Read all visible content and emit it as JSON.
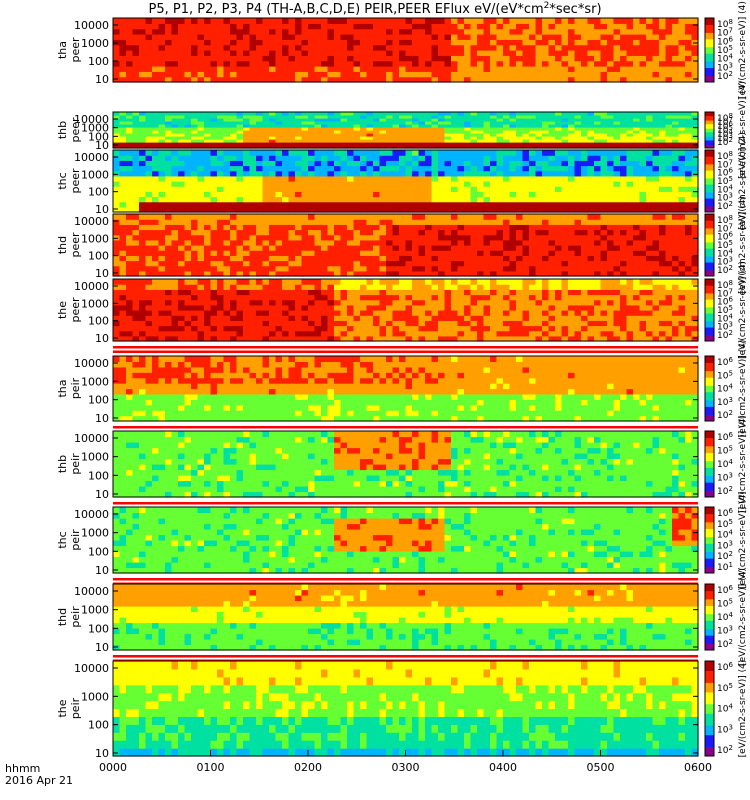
{
  "chart_data": {
    "type": "heatmap",
    "title": "P5, P1, P2, P3, P4 (TH-A,B,C,D,E) PEIR,PEER EFlux eV/(eV*cm^2*sec*sr)",
    "title_main": "P5, P1, P2, P3, P4 (TH-A,B,C,D,E) PEIR,PEER EFlux eV/(eV*cm",
    "title_sup": "2",
    "title_tail": "*sec*sr)",
    "x_axis": {
      "ticks": [
        "0000",
        "0100",
        "0200",
        "0300",
        "0400",
        "0500",
        "0600"
      ],
      "range_hours": [
        0,
        6
      ],
      "label_line1": "hhmm",
      "label_line2": "2016 Apr 21"
    },
    "panels": [
      {
        "probe": "tha",
        "line1": "tha",
        "line2": "peer",
        "species": "electron",
        "yticks": [
          "10",
          "100",
          "1000",
          "10000"
        ],
        "cb_ticks_exp": [
          "2",
          "3",
          "4",
          "5",
          "6",
          "7",
          "8"
        ],
        "cb_unit": "[eV/(cm2-s-sr-eV)] (4)",
        "separator_below": false
      },
      {
        "probe": "thb",
        "line1": "thb",
        "line2": "peer",
        "species": "electron",
        "yticks": [
          "10",
          "100",
          "1000",
          "10000"
        ],
        "cb_ticks_exp": [
          "2",
          "3",
          "4",
          "5",
          "6",
          "7",
          "8"
        ],
        "cb_unit": "[eV/(cm2-s-sr-eV)] (4)",
        "separator_below": false
      },
      {
        "probe": "thc",
        "line1": "thc",
        "line2": "peer",
        "species": "electron",
        "yticks": [
          "10",
          "100",
          "1000",
          "10000"
        ],
        "cb_ticks_exp": [
          "2",
          "3",
          "4",
          "5",
          "6",
          "7",
          "8"
        ],
        "cb_unit": "[eV/(cm2-s-sr-eV)] (4)",
        "separator_below": false
      },
      {
        "probe": "thd",
        "line1": "thd",
        "line2": "peer",
        "species": "electron",
        "yticks": [
          "10",
          "100",
          "1000",
          "10000"
        ],
        "cb_ticks_exp": [
          "2",
          "3",
          "4",
          "5",
          "6",
          "7",
          "8"
        ],
        "cb_unit": "[eV/(cm2-s-sr-eV)] (4)",
        "separator_below": false
      },
      {
        "probe": "the",
        "line1": "the",
        "line2": "peer",
        "species": "electron",
        "yticks": [
          "10",
          "100",
          "1000",
          "10000"
        ],
        "cb_ticks_exp": [
          "2",
          "3",
          "4",
          "5",
          "6",
          "7",
          "8"
        ],
        "cb_unit": "[eV/(cm2-s-sr-eV)] (4)",
        "separator_below": true
      },
      {
        "probe": "tha",
        "line1": "tha",
        "line2": "peir",
        "species": "ion",
        "yticks": [
          "10",
          "100",
          "1000",
          "10000"
        ],
        "cb_ticks_exp": [
          "2",
          "3",
          "4",
          "5",
          "6"
        ],
        "cb_unit": "[eV/(cm2-s-sr-eV)] (4)",
        "separator_below": true
      },
      {
        "probe": "thb",
        "line1": "thb",
        "line2": "peir",
        "species": "ion",
        "yticks": [
          "10",
          "100",
          "1000",
          "10000"
        ],
        "cb_ticks_exp": [
          "2",
          "3",
          "4",
          "5",
          "6"
        ],
        "cb_unit": "[eV/(cm2-s-sr-eV)] (4)",
        "separator_below": true
      },
      {
        "probe": "thc",
        "line1": "thc",
        "line2": "peir",
        "species": "ion",
        "yticks": [
          "10",
          "100",
          "1000",
          "10000"
        ],
        "cb_ticks_exp": [
          "1",
          "2",
          "3",
          "4",
          "5",
          "6"
        ],
        "cb_unit": "[eV/(cm2-s-sr-eV)] (4)",
        "separator_below": true
      },
      {
        "probe": "thd",
        "line1": "thd",
        "line2": "peir",
        "species": "ion",
        "yticks": [
          "10",
          "100",
          "1000",
          "10000"
        ],
        "cb_ticks_exp": [
          "2",
          "3",
          "4",
          "5",
          "6"
        ],
        "cb_unit": "[eV/(cm2-s-sr-eV)] (4)",
        "separator_below": true
      },
      {
        "probe": "the",
        "line1": "the",
        "line2": "peir",
        "species": "ion",
        "yticks": [
          "10",
          "100",
          "1000",
          "10000"
        ],
        "cb_ticks_exp": [
          "2",
          "3",
          "4",
          "5",
          "6"
        ],
        "cb_unit": "[eV/(cm2-s-sr-eV)] (4)",
        "separator_below": false
      }
    ],
    "colorscale": [
      "#8a008a",
      "#1a1aff",
      "#00b4ff",
      "#00e0a0",
      "#66ff33",
      "#ffff00",
      "#ffa000",
      "#ff2000",
      "#b00000"
    ],
    "grid": false,
    "legend": "colorbars-right"
  }
}
